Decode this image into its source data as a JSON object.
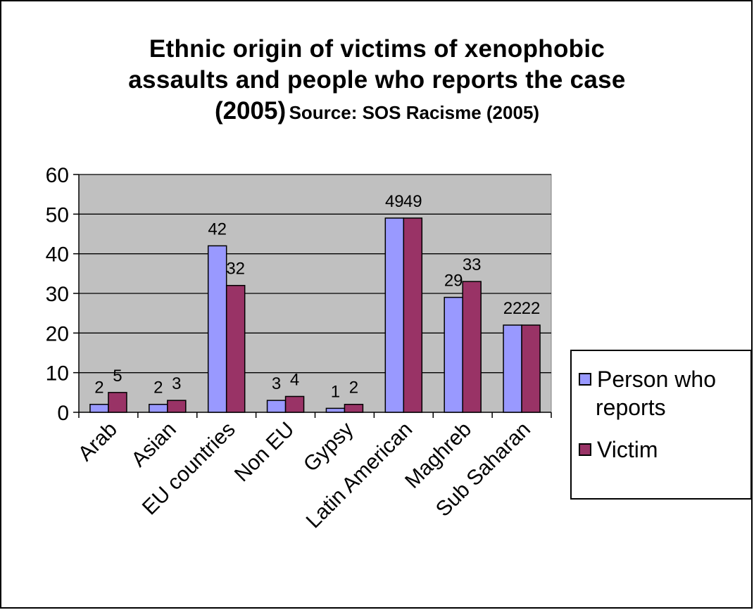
{
  "chart_data": {
    "type": "bar",
    "title_line1": "Ethnic origin of victims of xenophobic",
    "title_line2": "assaults and people who reports the case",
    "title_line3_main": "(2005)",
    "title_line3_source": "Source: SOS Racisme (2005)",
    "categories": [
      "Arab",
      "Asian",
      "EU countries",
      "Non EU",
      "Gypsy",
      "Latin American",
      "Maghreb",
      "Sub Saharan"
    ],
    "series": [
      {
        "name": "Person who reports",
        "values": [
          2,
          2,
          42,
          3,
          1,
          49,
          29,
          22
        ],
        "color": "#9999ff"
      },
      {
        "name": "Victim",
        "values": [
          5,
          3,
          32,
          4,
          2,
          49,
          33,
          22
        ],
        "color": "#993366"
      }
    ],
    "yticks": [
      "0",
      "10",
      "20",
      "30",
      "40",
      "50",
      "60"
    ],
    "ylim": [
      0,
      60
    ],
    "grid": true,
    "plot_background": "#c0c0c0",
    "legend_position": "right",
    "legend_line1": "Person who",
    "legend_line2": "reports",
    "legend_victim": "Victim"
  }
}
